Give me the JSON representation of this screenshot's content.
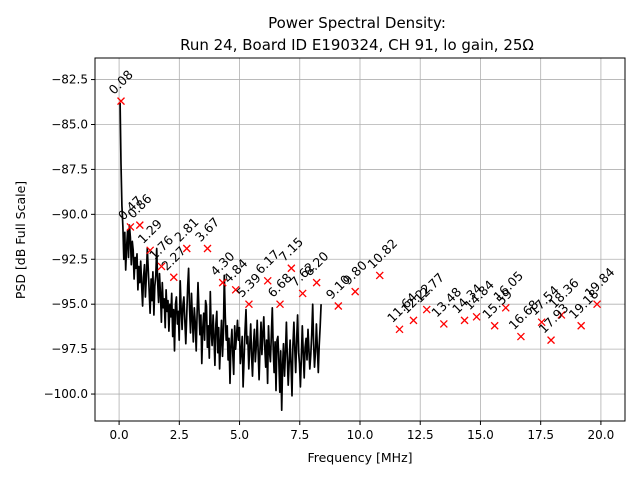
{
  "chart_data": {
    "type": "line",
    "title_line1": "Power Spectral Density:",
    "title_line2": "Run 24, Board ID E190324, CH 91, lo gain, 25Ω",
    "xlabel": "Frequency [MHz]",
    "ylabel": "PSD [dB Full Scale]",
    "xlim": [
      -1.0,
      21.0
    ],
    "ylim": [
      -101.5,
      -81.3
    ],
    "xticks": [
      0.0,
      2.5,
      5.0,
      7.5,
      10.0,
      12.5,
      15.0,
      17.5,
      20.0
    ],
    "xtick_labels": [
      "0.0",
      "2.5",
      "5.0",
      "7.5",
      "10.0",
      "12.5",
      "15.0",
      "17.5",
      "20.0"
    ],
    "yticks": [
      -82.5,
      -85.0,
      -87.5,
      -90.0,
      -92.5,
      -95.0,
      -97.5,
      -100.0
    ],
    "ytick_labels": [
      "−82.5",
      "−85.0",
      "−87.5",
      "−90.0",
      "−92.5",
      "−95.0",
      "−97.5",
      "−100.0"
    ],
    "grid": true,
    "series_color": "#000000",
    "peak_marker_color": "#ff0000",
    "peaks": [
      {
        "x": 0.08,
        "y": -83.7,
        "label": "0.08"
      },
      {
        "x": 0.47,
        "y": -90.7,
        "label": "0.47"
      },
      {
        "x": 0.86,
        "y": -90.6,
        "label": "0.86"
      },
      {
        "x": 1.29,
        "y": -92.0,
        "label": "1.29"
      },
      {
        "x": 1.76,
        "y": -92.9,
        "label": "1.76"
      },
      {
        "x": 2.27,
        "y": -93.5,
        "label": "2.27"
      },
      {
        "x": 2.81,
        "y": -91.9,
        "label": "2.81"
      },
      {
        "x": 3.67,
        "y": -91.9,
        "label": "3.67"
      },
      {
        "x": 4.3,
        "y": -93.8,
        "label": "4.30"
      },
      {
        "x": 4.84,
        "y": -94.2,
        "label": "4.84"
      },
      {
        "x": 5.39,
        "y": -95.0,
        "label": "5.39"
      },
      {
        "x": 6.17,
        "y": -93.7,
        "label": "6.17"
      },
      {
        "x": 6.68,
        "y": -95.0,
        "label": "6.68"
      },
      {
        "x": 7.15,
        "y": -93.0,
        "label": "7.15"
      },
      {
        "x": 7.62,
        "y": -94.4,
        "label": "7.62"
      },
      {
        "x": 8.2,
        "y": -93.8,
        "label": "8.20"
      },
      {
        "x": 9.1,
        "y": -95.1,
        "label": "9.10"
      },
      {
        "x": 9.8,
        "y": -94.3,
        "label": "9.80"
      },
      {
        "x": 10.82,
        "y": -93.4,
        "label": "10.82"
      },
      {
        "x": 11.64,
        "y": -96.4,
        "label": "11.64"
      },
      {
        "x": 12.22,
        "y": -95.9,
        "label": "12.22"
      },
      {
        "x": 12.77,
        "y": -95.3,
        "label": "12.77"
      },
      {
        "x": 13.48,
        "y": -96.1,
        "label": "13.48"
      },
      {
        "x": 14.34,
        "y": -95.9,
        "label": "14.34"
      },
      {
        "x": 14.84,
        "y": -95.7,
        "label": "14.84"
      },
      {
        "x": 15.59,
        "y": -96.2,
        "label": "15.59"
      },
      {
        "x": 16.05,
        "y": -95.2,
        "label": "16.05"
      },
      {
        "x": 16.68,
        "y": -96.8,
        "label": "16.68"
      },
      {
        "x": 17.54,
        "y": -96.0,
        "label": "17.54"
      },
      {
        "x": 17.93,
        "y": -97.0,
        "label": "17.93"
      },
      {
        "x": 18.36,
        "y": -95.6,
        "label": "18.36"
      },
      {
        "x": 19.18,
        "y": -96.2,
        "label": "19.18"
      },
      {
        "x": 19.84,
        "y": -95.0,
        "label": "19.84"
      }
    ],
    "psd_trace": {
      "x_start": 0.04,
      "x_step": 0.039,
      "y": [
        -83.8,
        -87.2,
        -89.5,
        -90.7,
        -92.5,
        -91.0,
        -93.1,
        -91.8,
        -90.9,
        -92.4,
        -90.6,
        -91.3,
        -92.8,
        -91.5,
        -92.0,
        -93.6,
        -92.4,
        -93.0,
        -92.2,
        -94.2,
        -92.9,
        -93.8,
        -92.6,
        -94.0,
        -95.1,
        -93.5,
        -92.8,
        -94.6,
        -93.4,
        -91.9,
        -93.0,
        -94.3,
        -95.5,
        -93.6,
        -94.8,
        -93.2,
        -95.6,
        -94.0,
        -93.4,
        -91.9,
        -93.7,
        -94.9,
        -93.3,
        -94.5,
        -96.0,
        -93.8,
        -95.2,
        -94.7,
        -96.3,
        -94.2,
        -95.4,
        -94.8,
        -96.5,
        -95.0,
        -95.7,
        -94.4,
        -96.8,
        -95.3,
        -97.6,
        -95.0,
        -94.6,
        -96.1,
        -95.4,
        -97.0,
        -93.7,
        -95.2,
        -96.4,
        -95.0,
        -94.6,
        -96.0,
        -97.2,
        -95.5,
        -94.0,
        -93.0,
        -95.3,
        -96.6,
        -94.4,
        -95.8,
        -97.1,
        -95.2,
        -96.0,
        -97.6,
        -95.5,
        -93.8,
        -95.4,
        -96.7,
        -95.6,
        -98.3,
        -96.4,
        -95.5,
        -97.0,
        -94.8,
        -95.1,
        -97.4,
        -96.2,
        -98.0,
        -94.3,
        -96.5,
        -97.3,
        -95.6,
        -96.8,
        -98.4,
        -96.1,
        -95.4,
        -97.7,
        -96.3,
        -98.6,
        -97.1,
        -95.9,
        -97.9,
        -96.6,
        -93.4,
        -95.7,
        -97.0,
        -96.2,
        -98.1,
        -96.9,
        -99.4,
        -97.3,
        -96.4,
        -97.8,
        -98.9,
        -96.2,
        -97.5,
        -96.7,
        -95.9,
        -97.0,
        -96.3,
        -98.3,
        -97.6,
        -96.8,
        -99.6,
        -98.0,
        -96.5,
        -95.3,
        -97.2,
        -96.8,
        -98.6,
        -97.4,
        -96.1,
        -97.9,
        -99.0,
        -97.2,
        -96.4,
        -98.2,
        -97.3,
        -95.9,
        -97.7,
        -99.2,
        -97.5,
        -96.0,
        -97.8,
        -96.6,
        -95.7,
        -97.3,
        -98.5,
        -97.0,
        -99.4,
        -96.2,
        -97.6,
        -98.2,
        -96.8,
        -95.2,
        -97.4,
        -98.8,
        -97.1,
        -99.8,
        -97.0,
        -96.8,
        -98.1,
        -99.9,
        -97.6,
        -100.9,
        -98.4,
        -97.2,
        -99.0,
        -97.8,
        -96.0,
        -97.9,
        -99.5,
        -98.2,
        -97.0,
        -98.5,
        -100.1,
        -97.3,
        -96.0,
        -97.5,
        -98.8,
        -96.9,
        -95.6,
        -97.7,
        -98.3,
        -99.6,
        -97.9,
        -96.2,
        -97.8,
        -99.1,
        -97.4,
        -96.9,
        -98.1,
        -96.4,
        -97.5,
        -98.6,
        -97.8,
        -96.7,
        -95.0,
        -97.2,
        -98.5,
        -97.6,
        -96.1,
        -97.5,
        -98.8,
        -97.3,
        -96.2,
        -95.0
      ]
    }
  }
}
